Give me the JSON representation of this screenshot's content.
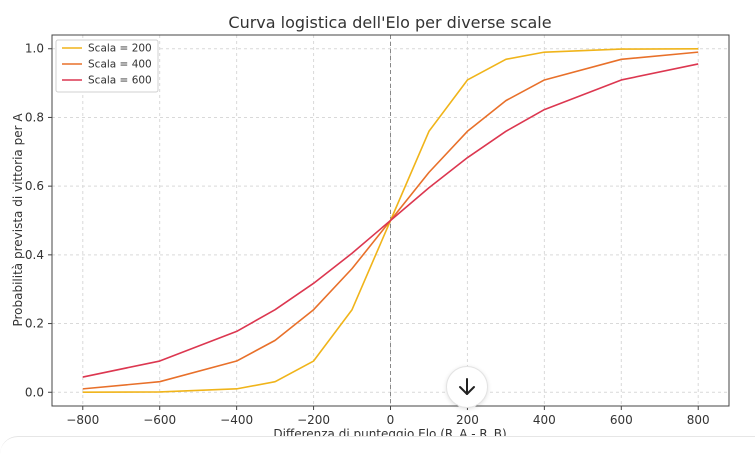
{
  "chart_data": {
    "type": "line",
    "title": "Curva logistica dell'Elo per diverse scale",
    "xlabel": "Differenza di punteggio Elo (R_A - R_B)",
    "ylabel": "Probabilità prevista di vittoria per A",
    "xlim": [
      -880,
      880
    ],
    "ylim": [
      -0.04,
      1.04
    ],
    "xticks": [
      -800,
      -600,
      -400,
      -200,
      0,
      200,
      400,
      600,
      800
    ],
    "xtick_labels": [
      "−800",
      "−600",
      "−400",
      "−200",
      "0",
      "200",
      "400",
      "600",
      "800"
    ],
    "yticks": [
      0.0,
      0.2,
      0.4,
      0.6,
      0.8,
      1.0
    ],
    "ytick_labels": [
      "0.0",
      "0.2",
      "0.4",
      "0.6",
      "0.8",
      "1.0"
    ],
    "grid": true,
    "legend_position": "top-left",
    "vertical_line": {
      "x": 0,
      "style": "dashed",
      "color": "#888888"
    },
    "series": [
      {
        "name": "Scala = 200",
        "color": "#f0b41a",
        "x": [
          -800,
          -600,
          -400,
          -300,
          -200,
          -100,
          0,
          100,
          200,
          300,
          400,
          600,
          800
        ],
        "y": [
          0.0001,
          0.001,
          0.0099,
          0.0307,
          0.0909,
          0.2403,
          0.5,
          0.7597,
          0.9091,
          0.9693,
          0.9901,
          0.999,
          0.9999
        ]
      },
      {
        "name": "Scala = 400",
        "color": "#e8702a",
        "x": [
          -800,
          -600,
          -400,
          -300,
          -200,
          -100,
          0,
          100,
          200,
          300,
          400,
          600,
          800
        ],
        "y": [
          0.0099,
          0.0307,
          0.0909,
          0.151,
          0.2403,
          0.3599,
          0.5,
          0.6401,
          0.7597,
          0.849,
          0.9091,
          0.9693,
          0.9901
        ]
      },
      {
        "name": "Scala = 600",
        "color": "#dc3750",
        "x": [
          -800,
          -600,
          -400,
          -300,
          -200,
          -100,
          0,
          100,
          200,
          300,
          400,
          600,
          800
        ],
        "y": [
          0.0443,
          0.0909,
          0.1772,
          0.2403,
          0.3171,
          0.4046,
          0.5,
          0.5954,
          0.6829,
          0.7597,
          0.8228,
          0.9091,
          0.9557
        ]
      }
    ]
  },
  "icons": {
    "scroll_down": "arrow-down-icon"
  }
}
